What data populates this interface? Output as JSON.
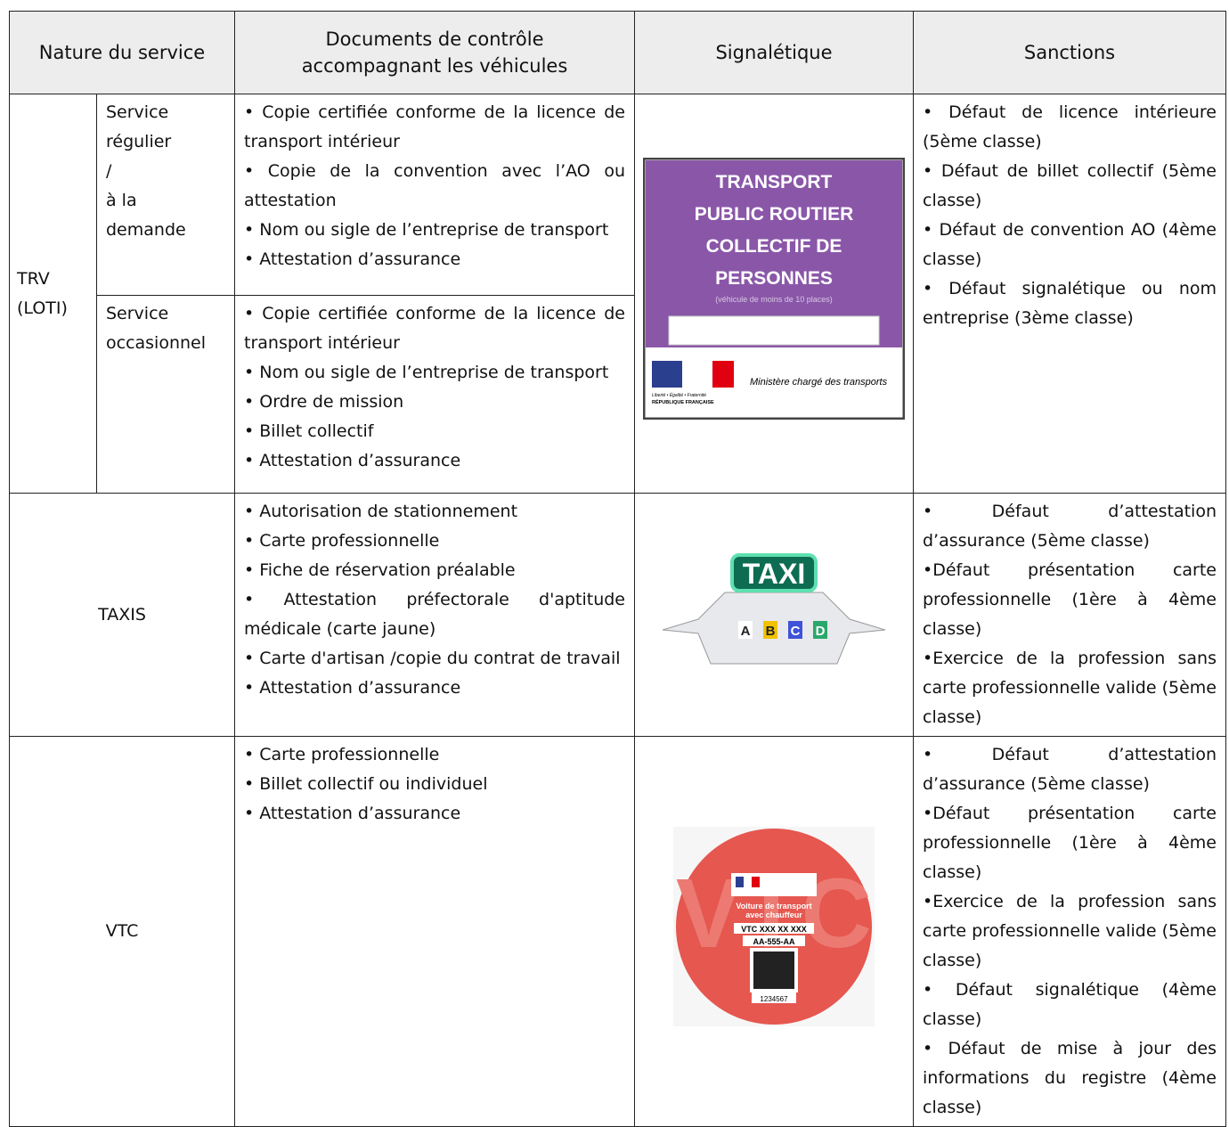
{
  "header": {
    "nature": "Nature du service",
    "documents": [
      "Documents de contrôle",
      "accompagnant les véhicules"
    ],
    "signage": "Signalétique",
    "sanctions": "Sanctions"
  },
  "trv": {
    "label": [
      "TRV",
      "(LOTI)"
    ],
    "regular": {
      "label": [
        "Service",
        "régulier",
        "/",
        "à la",
        "demande"
      ],
      "documents": [
        "• Copie certifiée conforme de la licence de transport intérieur",
        "• Copie de la convention avec l’AO ou attestation",
        "• Nom ou sigle de l’entreprise de transport",
        "• Attestation d’assurance"
      ]
    },
    "occasional": {
      "label": [
        "Service",
        "occasionnel"
      ],
      "documents": [
        "• Copie certifiée conforme de la licence de transport intérieur",
        "• Nom ou sigle de l’entreprise de transport",
        "• Ordre de mission",
        "• Billet collectif",
        "• Attestation d’assurance"
      ]
    },
    "signage": {
      "title": [
        "TRANSPORT",
        "PUBLIC ROUTIER",
        "COLLECTIF DE",
        "PERSONNES"
      ],
      "subtitle": "(véhicule de moins de 10 places)",
      "motto": "Liberté • Égalité • Fraternité",
      "republic": "RÉPUBLIQUE FRANÇAISE",
      "ministry": "Ministère chargé des transports"
    },
    "sanctions": [
      "• Défaut de licence intérieure (5ème classe)",
      "• Défaut de billet collectif (5ème classe)",
      "• Défaut de convention AO (4ème classe)",
      "• Défaut signalétique ou nom entreprise (3ème classe)"
    ]
  },
  "taxis": {
    "label": "TAXIS",
    "documents": [
      "• Autorisation de stationnement",
      "• Carte professionnelle",
      "• Fiche de réservation préalable",
      "• Attestation préfectorale d'aptitude médicale (carte jaune)",
      "• Carte d'artisan /copie du contrat de travail",
      "• Attestation d’assurance"
    ],
    "signage": {
      "sign": "TAXI",
      "lights": [
        "A",
        "B",
        "C",
        "D"
      ]
    },
    "sanctions": [
      "• Défaut d’attestation d’assurance (5ème classe)",
      "•Défaut présentation carte professionnelle (1ère à 4ème classe)",
      "•Exercice de la profession sans carte professionnelle valide (5ème classe)"
    ]
  },
  "vtc": {
    "label": "VTC",
    "documents": [
      "• Carte professionnelle",
      "• Billet collectif ou individuel",
      "• Attestation d’assurance"
    ],
    "signage": {
      "watermark": "VTC",
      "title": [
        "Voiture de transport",
        "avec chauffeur"
      ],
      "number": "VTC XXX XX XXX",
      "plate": "AA-555-AA",
      "code": "1234567"
    },
    "sanctions": [
      "• Défaut d’attestation d’assurance (5ème classe)",
      "•Défaut présentation carte professionnelle (1ère à 4ème classe)",
      "•Exercice de la profession sans carte professionnelle valide (5ème classe)",
      "• Défaut signalétique (4ème classe)",
      "• Défaut de mise à jour des informations du registre (4ème classe)"
    ]
  }
}
